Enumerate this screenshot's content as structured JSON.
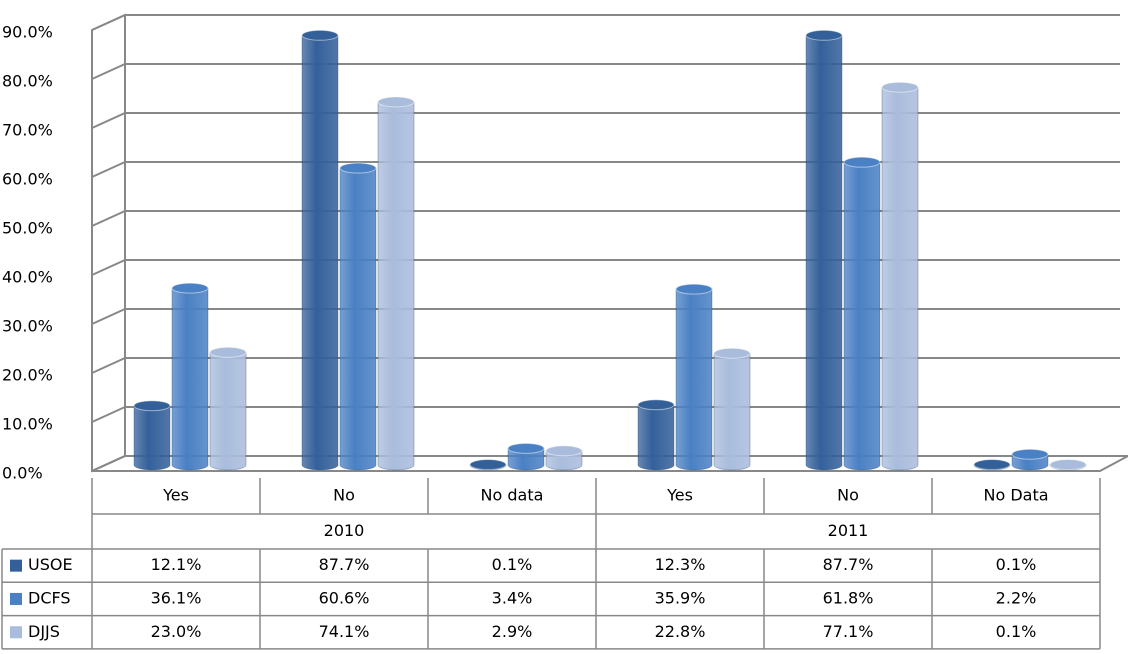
{
  "chart_data": {
    "type": "bar3d",
    "categories": [
      "Yes",
      "No",
      "No data",
      "Yes",
      "No",
      "No Data"
    ],
    "groups": [
      "2010",
      "2011"
    ],
    "series": [
      {
        "name": "USOE",
        "color": "#34609a",
        "values": [
          12.1,
          87.7,
          0.1,
          12.3,
          87.7,
          0.1
        ],
        "value_labels": [
          "12.1%",
          "87.7%",
          "0.1%",
          "12.3%",
          "87.7%",
          "0.1%"
        ]
      },
      {
        "name": "DCFS",
        "color": "#4a80c4",
        "values": [
          36.1,
          60.6,
          3.4,
          35.9,
          61.8,
          2.2
        ],
        "value_labels": [
          "36.1%",
          "60.6%",
          "3.4%",
          "35.9%",
          "61.8%",
          "2.2%"
        ]
      },
      {
        "name": "DJJS",
        "color": "#a9bcdc",
        "values": [
          23.0,
          74.1,
          2.9,
          22.8,
          77.1,
          0.1
        ],
        "value_labels": [
          "23.0%",
          "74.1%",
          "2.9%",
          "22.8%",
          "77.1%",
          "0.1%"
        ]
      }
    ],
    "ylim": [
      0,
      90
    ],
    "yticks": [
      {
        "value": 0,
        "label": "0.0%"
      },
      {
        "value": 10,
        "label": "10.0%"
      },
      {
        "value": 20,
        "label": "20.0%"
      },
      {
        "value": 30,
        "label": "30.0%"
      },
      {
        "value": 40,
        "label": "40.0%"
      },
      {
        "value": 50,
        "label": "50.0%"
      },
      {
        "value": 60,
        "label": "60.0%"
      },
      {
        "value": 70,
        "label": "70.0%"
      },
      {
        "value": 80,
        "label": "80.0%"
      },
      {
        "value": 90,
        "label": "90.0%"
      }
    ],
    "grid": true
  }
}
